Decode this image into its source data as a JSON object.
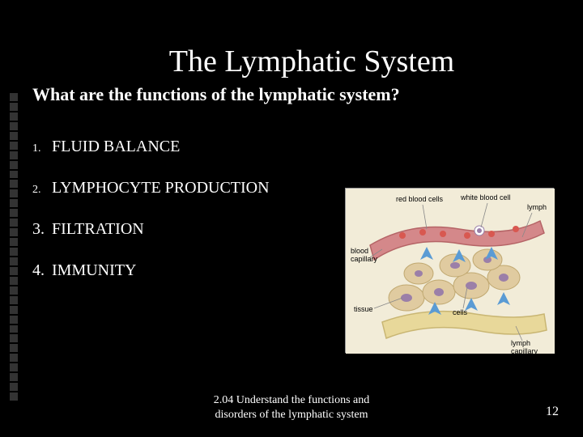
{
  "title": "The Lymphatic System",
  "subtitle": "What are the functions of the lymphatic system?",
  "items": [
    {
      "num": "1.",
      "text": "FLUID BALANCE",
      "small_num": true
    },
    {
      "num": "2.",
      "text": "LYMPHOCYTE PRODUCTION",
      "small_num": true
    },
    {
      "num": "3.",
      "text": "FILTRATION",
      "small_num": false
    },
    {
      "num": "4.",
      "text": "IMMUNITY",
      "small_num": false
    }
  ],
  "diagram": {
    "labels": {
      "red_blood_cells": "red blood cells",
      "white_blood_cell": "white blood cell",
      "lymph": "lymph",
      "blood_capillary": "blood\ncapillary",
      "tissue": "tissue",
      "cells": "cells",
      "lymph_capillary": "lymph\ncapillary"
    },
    "colors": {
      "background": "#f2ecd8",
      "blood_vessel": "#d4888a",
      "blood_vessel_dark": "#b56466",
      "lymph_vessel": "#e8d89a",
      "lymph_vessel_dark": "#c9b673",
      "tissue_cell": "#e0cba0",
      "tissue_cell_border": "#c0a870",
      "red_cell": "#d85850",
      "white_cell": "#ffffff",
      "nucleus": "#9b7fa8",
      "arrow": "#5a9bd4",
      "label_line": "#888888"
    }
  },
  "footer": {
    "line1": "2.04 Understand the functions and",
    "line2": "disorders of the lymphatic system"
  },
  "page_number": "12",
  "style": {
    "background": "#000000",
    "text_color": "#ffffff",
    "dot_color": "#333333",
    "title_fontsize": 38,
    "subtitle_fontsize": 22,
    "item_fontsize": 20,
    "footer_fontsize": 14
  }
}
